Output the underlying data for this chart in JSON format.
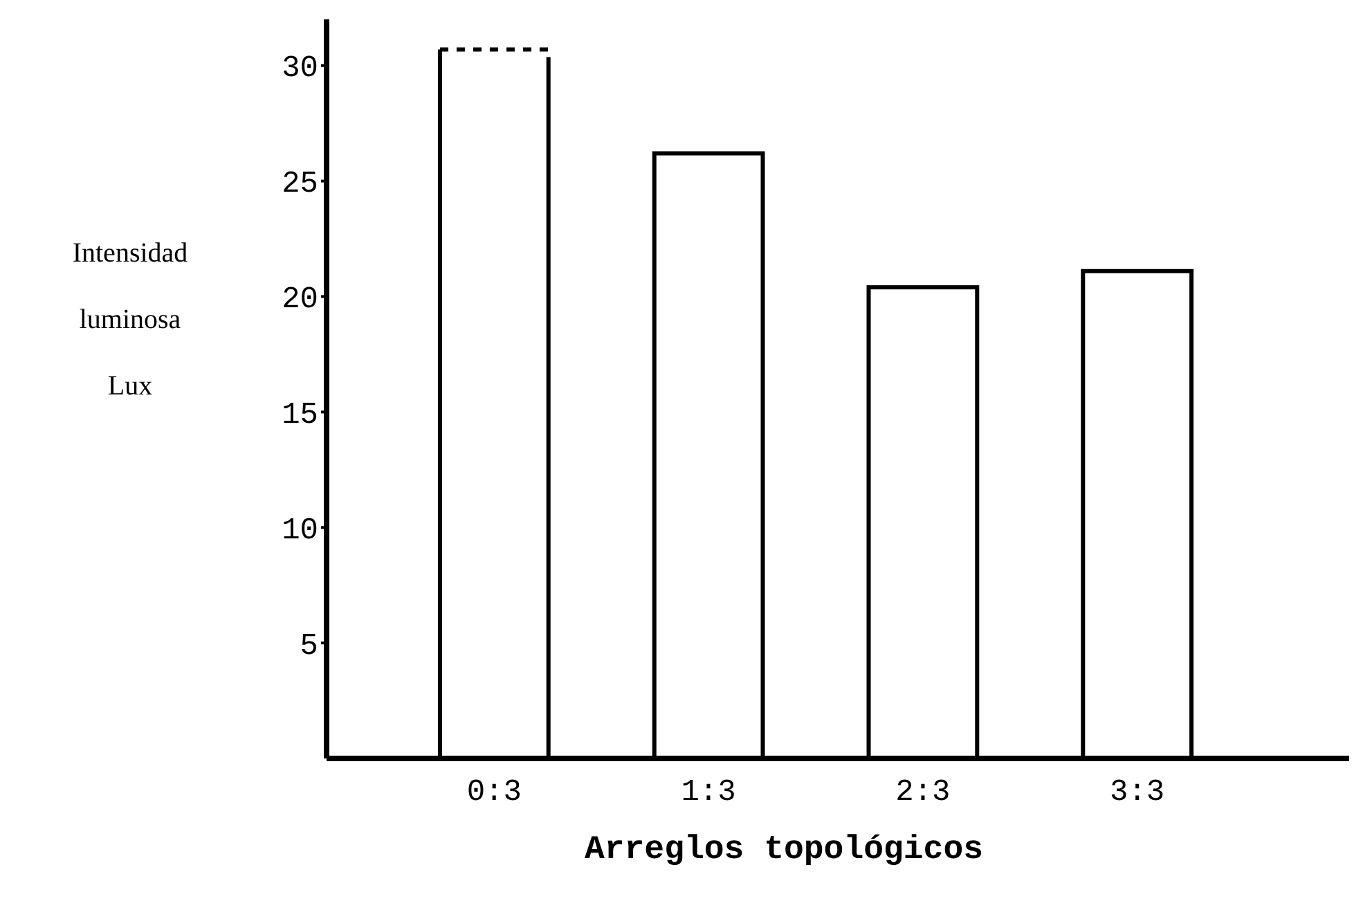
{
  "chart_data": {
    "type": "bar",
    "xlabel": "Arreglos topológicos",
    "ylabel": "Intensidad\nluminosa\nLux",
    "categories": [
      "0:3",
      "1:3",
      "2:3",
      "3:3"
    ],
    "values": [
      30.7,
      26.2,
      20.4,
      21.1
    ],
    "color": "#000000",
    "ylim": [
      0,
      32
    ],
    "yticks": [
      5,
      10,
      15,
      20,
      25,
      30
    ],
    "grid": false
  }
}
